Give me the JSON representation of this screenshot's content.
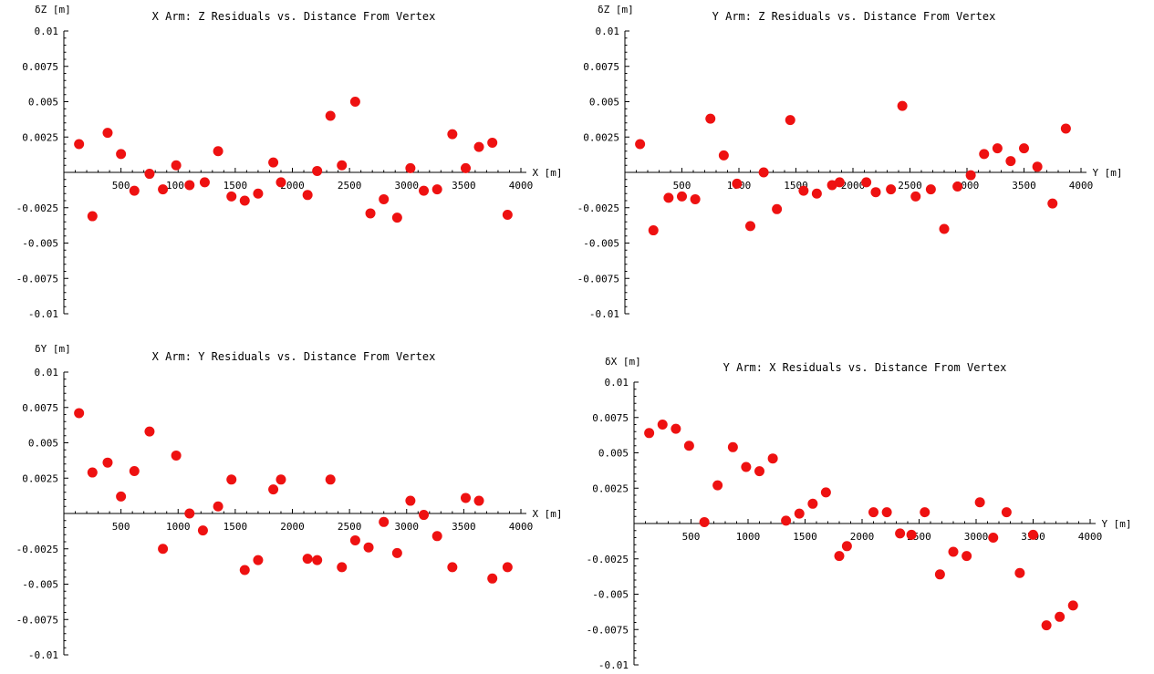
{
  "colors": {
    "point": "#ee1111",
    "axis": "#000000"
  },
  "chart_data": [
    {
      "type": "scatter",
      "title": "X Arm: Z Residuals vs. Distance From Vertex",
      "xlabel": "X [m]",
      "ylabel": "δZ [m]",
      "xlim": [
        0,
        4000
      ],
      "ylim": [
        -0.01,
        0.01
      ],
      "x_ticks": [
        500,
        1000,
        1500,
        2000,
        2500,
        3000,
        3500,
        4000
      ],
      "x_tick_labels": [
        "500",
        "1000",
        "1500",
        "2000",
        "2500",
        "3000",
        "3500",
        "4000"
      ],
      "y_ticks": [
        -0.01,
        -0.0075,
        -0.005,
        -0.0025,
        0.0025,
        0.005,
        0.0075,
        0.01
      ],
      "y_tick_labels": [
        "-0.01",
        "-0.0075",
        "-0.005",
        "-0.0025",
        "0.0025",
        "0.005",
        "0.0075",
        "0.01"
      ],
      "x": [
        133,
        250,
        383,
        500,
        617,
        750,
        867,
        983,
        1100,
        1233,
        1350,
        1467,
        1583,
        1700,
        1833,
        1900,
        2133,
        2217,
        2333,
        2433,
        2550,
        2683,
        2800,
        2917,
        3033,
        3150,
        3267,
        3400,
        3517,
        3633,
        3750,
        3883
      ],
      "y": [
        0.002,
        -0.0031,
        0.0028,
        0.0013,
        -0.0013,
        -0.0001,
        -0.0012,
        0.0005,
        -0.0009,
        -0.0007,
        0.0015,
        -0.0017,
        -0.002,
        -0.0015,
        0.0007,
        -0.0007,
        -0.0016,
        0.0001,
        0.004,
        0.0005,
        0.005,
        -0.0029,
        -0.0019,
        -0.0032,
        0.0003,
        -0.0013,
        -0.0012,
        0.0027,
        0.0003,
        0.0018,
        0.0021,
        -0.003
      ]
    },
    {
      "type": "scatter",
      "title": "Y Arm: Z Residuals vs. Distance From Vertex",
      "xlabel": "Y [m]",
      "ylabel": "δZ [m]",
      "xlim": [
        0,
        4000
      ],
      "ylim": [
        -0.01,
        0.01
      ],
      "x_ticks": [
        500,
        1000,
        1500,
        2000,
        2500,
        3000,
        3500,
        4000
      ],
      "x_tick_labels": [
        "500",
        "1000",
        "1500",
        "2000",
        "2500",
        "3000",
        "3500",
        "4000"
      ],
      "y_ticks": [
        -0.01,
        -0.0075,
        -0.005,
        -0.0025,
        0.0025,
        0.005,
        0.0075,
        0.01
      ],
      "y_tick_labels": [
        "-0.01",
        "-0.0075",
        "-0.005",
        "-0.0025",
        "0.0025",
        "0.005",
        "0.0075",
        "0.01"
      ],
      "x": [
        133,
        250,
        383,
        500,
        617,
        750,
        867,
        983,
        1100,
        1217,
        1333,
        1450,
        1567,
        1683,
        1817,
        1883,
        2117,
        2200,
        2333,
        2433,
        2550,
        2683,
        2800,
        2917,
        3033,
        3150,
        3267,
        3383,
        3500,
        3617,
        3750,
        3867
      ],
      "y": [
        0.002,
        -0.0041,
        -0.0018,
        -0.0017,
        -0.0019,
        0.0038,
        0.0012,
        -0.0008,
        -0.0038,
        0.0,
        -0.0026,
        0.0037,
        -0.0013,
        -0.0015,
        -0.0009,
        -0.0007,
        -0.0007,
        -0.0014,
        -0.0012,
        0.0047,
        -0.0017,
        -0.0012,
        -0.004,
        -0.001,
        -0.0002,
        0.0013,
        0.0017,
        0.0008,
        0.0017,
        0.0004,
        -0.0022,
        0.0031
      ]
    },
    {
      "type": "scatter",
      "title": "X Arm: Y Residuals vs. Distance From Vertex",
      "xlabel": "X [m]",
      "ylabel": "δY [m]",
      "xlim": [
        0,
        4000
      ],
      "ylim": [
        -0.01,
        0.01
      ],
      "x_ticks": [
        500,
        1000,
        1500,
        2000,
        2500,
        3000,
        3500,
        4000
      ],
      "x_tick_labels": [
        "500",
        "1000",
        "1500",
        "2000",
        "2500",
        "3000",
        "3500",
        "4000"
      ],
      "y_ticks": [
        -0.01,
        -0.0075,
        -0.005,
        -0.0025,
        0.0025,
        0.005,
        0.0075,
        0.01
      ],
      "y_tick_labels": [
        "-0.01",
        "-0.0075",
        "-0.005",
        "-0.0025",
        "0.0025",
        "0.005",
        "0.0075",
        "0.01"
      ],
      "x": [
        133,
        250,
        383,
        500,
        617,
        750,
        867,
        983,
        1100,
        1217,
        1350,
        1467,
        1583,
        1700,
        1833,
        1900,
        2133,
        2217,
        2333,
        2433,
        2550,
        2667,
        2800,
        2917,
        3033,
        3150,
        3267,
        3400,
        3517,
        3633,
        3750,
        3883
      ],
      "y": [
        0.0071,
        0.0029,
        0.0036,
        0.0012,
        0.003,
        0.0058,
        -0.0025,
        0.0041,
        0.0,
        -0.0012,
        0.0005,
        0.0024,
        -0.004,
        -0.0033,
        0.0017,
        0.0024,
        -0.0032,
        -0.0033,
        0.0024,
        -0.0038,
        -0.0019,
        -0.0024,
        -0.0006,
        -0.0028,
        0.0009,
        -0.0001,
        -0.0016,
        -0.0038,
        0.0011,
        0.0009,
        -0.0046,
        -0.0038
      ]
    },
    {
      "type": "scatter",
      "title": "Y Arm: X Residuals vs. Distance From Vertex",
      "xlabel": "Y [m]",
      "ylabel": "δX [m]",
      "xlim": [
        0,
        4000
      ],
      "ylim": [
        -0.01,
        0.01
      ],
      "x_ticks": [
        500,
        1000,
        1500,
        2000,
        2500,
        3000,
        3500,
        4000
      ],
      "x_tick_labels": [
        "500",
        "1000",
        "1500",
        "2000",
        "2500",
        "3000",
        "3500",
        "4000"
      ],
      "y_ticks": [
        -0.01,
        -0.0075,
        -0.005,
        -0.0025,
        0.0025,
        0.005,
        0.0075,
        0.01
      ],
      "y_tick_labels": [
        "-0.01",
        "-0.0075",
        "-0.005",
        "-0.0025",
        "0.0025",
        "0.005",
        "0.0075",
        "0.01"
      ],
      "x": [
        133,
        250,
        367,
        483,
        617,
        733,
        867,
        983,
        1100,
        1217,
        1333,
        1450,
        1567,
        1683,
        1800,
        1867,
        2100,
        2217,
        2333,
        2433,
        2550,
        2683,
        2800,
        2917,
        3033,
        3150,
        3267,
        3383,
        3500,
        3617,
        3733,
        3850
      ],
      "y": [
        0.0064,
        0.007,
        0.0067,
        0.0055,
        0.0001,
        0.0027,
        0.0054,
        0.004,
        0.0037,
        0.0046,
        0.0002,
        0.0007,
        0.0014,
        0.0022,
        -0.0023,
        -0.0016,
        0.0008,
        0.0008,
        -0.0007,
        -0.0008,
        0.0008,
        -0.0036,
        -0.002,
        -0.0023,
        0.0015,
        -0.001,
        0.0008,
        -0.0035,
        -0.0008,
        -0.0072,
        -0.0066,
        -0.0058
      ]
    }
  ]
}
